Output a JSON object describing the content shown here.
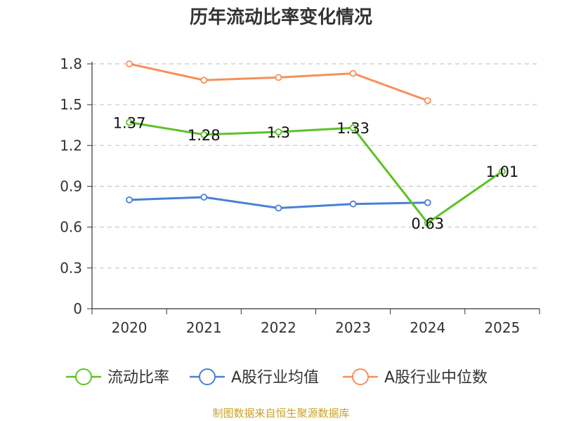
{
  "chart_data": {
    "type": "line",
    "title": "历年流动比率变化情况",
    "categories": [
      "2020",
      "2021",
      "2022",
      "2023",
      "2024",
      "2025"
    ],
    "ylim": [
      0,
      1.8
    ],
    "yticks": [
      "0",
      "0.3",
      "0.6",
      "0.9",
      "1.2",
      "1.5",
      "1.8"
    ],
    "grid": true,
    "legend_position": "bottom",
    "series": [
      {
        "name": "流动比率",
        "color": "#5bc226",
        "values": [
          1.37,
          1.28,
          1.3,
          1.33,
          0.63,
          1.01
        ],
        "labels": [
          "1.37",
          "1.28",
          "1.3",
          "1.33",
          "0.63",
          "1.01"
        ]
      },
      {
        "name": "A股行业均值",
        "color": "#4a7fd8",
        "values": [
          0.8,
          0.82,
          0.74,
          0.77,
          0.78,
          null
        ]
      },
      {
        "name": "A股行业中位数",
        "color": "#f5905a",
        "values": [
          1.8,
          1.68,
          1.7,
          1.73,
          1.53,
          null
        ]
      }
    ],
    "source": "制图数据来自恒生聚源数据库"
  }
}
